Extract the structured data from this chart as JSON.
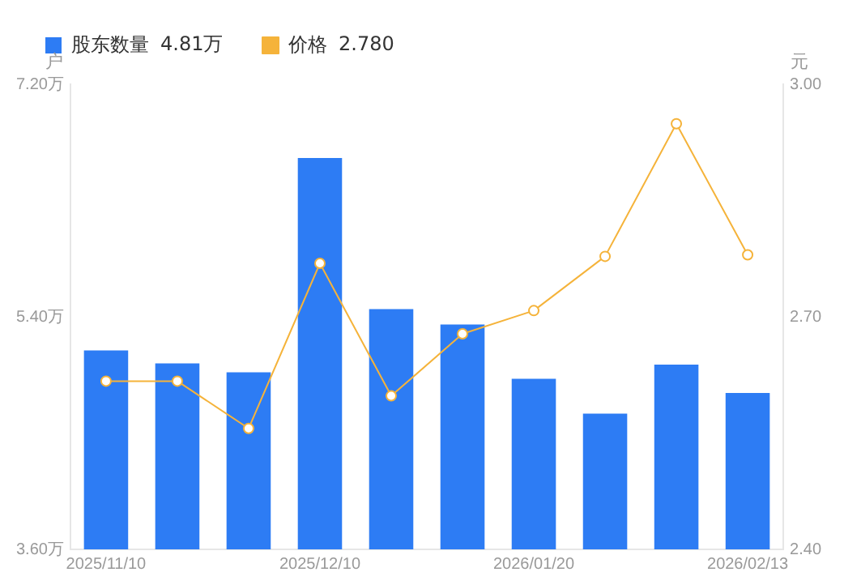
{
  "chart_data": {
    "type": "bar",
    "categories": [
      "2025/11/10",
      null,
      null,
      "2025/12/10",
      null,
      null,
      "2026/01/20",
      null,
      null,
      "2026/02/13"
    ],
    "series": [
      {
        "name": "股东数量",
        "color": "#2d7cf4",
        "values": [
          5.14,
          5.04,
          4.97,
          6.63,
          5.46,
          5.34,
          4.92,
          4.65,
          5.03,
          4.81
        ]
      },
      {
        "name": "价格",
        "type": "line",
        "axis": "y2",
        "color": "#f5b33a",
        "marker": "circle",
        "values": [
          2.617,
          2.617,
          2.556,
          2.769,
          2.598,
          2.678,
          2.708,
          2.778,
          2.949,
          2.78
        ]
      }
    ],
    "annotations": [
      "4.81万",
      "2.780"
    ],
    "ylabel": "户",
    "y2label": "元",
    "ylim": [
      3.6,
      7.2
    ],
    "yticks": [
      {
        "value": 3.6,
        "label": "3.60万"
      },
      {
        "value": 5.4,
        "label": "5.40万"
      },
      {
        "value": 7.2,
        "label": "7.20万"
      }
    ],
    "y2lim": [
      2.4,
      3.0
    ],
    "y2ticks": [
      {
        "value": 2.4,
        "label": "2.40"
      },
      {
        "value": 2.7,
        "label": "2.70"
      },
      {
        "value": 3.0,
        "label": "3.00"
      }
    ],
    "grid": false,
    "legend": "top left"
  }
}
